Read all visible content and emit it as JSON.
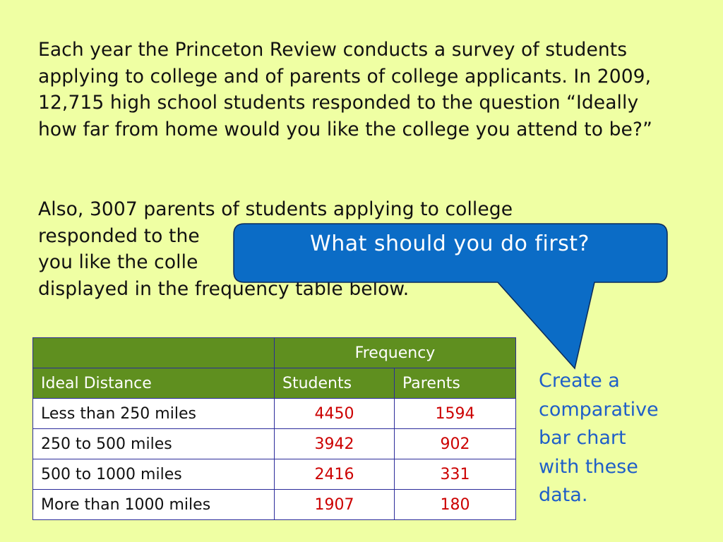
{
  "intro": {
    "paragraph1": "Each year the Princeton  Review conducts a survey of students applying to college and of parents of college applicants.  In 2009, 12,715 high school students responded to the question “Ideally how far from home would you like the college you attend to be?”",
    "paragraph2_visible_lines": [
      "Also, 3007 parents of students applying to college",
      "responded to the",
      "you like the colle",
      "displayed in the frequency table below."
    ]
  },
  "callout": {
    "text": "What should you do first?",
    "color": "#0b6cc6"
  },
  "table": {
    "group_header": "Frequency",
    "columns": [
      "Ideal Distance",
      "Students",
      "Parents"
    ],
    "rows": [
      {
        "distance": "Less than 250 miles",
        "students": "4450",
        "parents": "1594"
      },
      {
        "distance": "250 to 500 miles",
        "students": "3942",
        "parents": "902"
      },
      {
        "distance": "500 to 1000 miles",
        "students": "2416",
        "parents": "331"
      },
      {
        "distance": "More than 1000 miles",
        "students": "1907",
        "parents": "180"
      }
    ],
    "header_color": "#5f8f1f",
    "value_color": "#cc0000"
  },
  "note": {
    "lines": [
      "Create a",
      "comparative",
      "bar chart",
      "with these",
      "data."
    ],
    "color": "#1f5fc8"
  },
  "background_color": "#efffa3"
}
